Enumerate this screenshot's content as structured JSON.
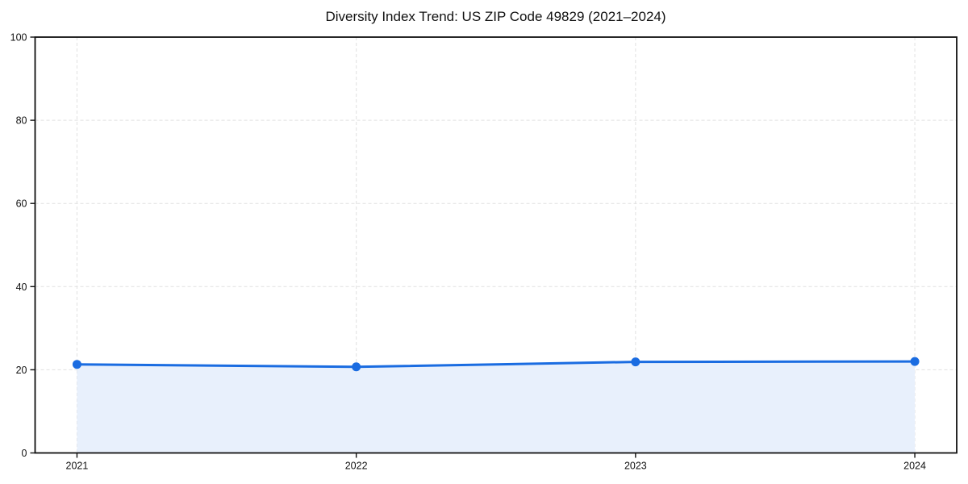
{
  "chart_data": {
    "type": "line",
    "title": "Diversity Index Trend: US ZIP Code 49829 (2021–2024)",
    "x": [
      2021,
      2022,
      2023,
      2024
    ],
    "categories": [
      "2021",
      "2022",
      "2023",
      "2024"
    ],
    "series": [
      {
        "name": "Diversity Index",
        "values": [
          21.3,
          20.7,
          21.9,
          22.0
        ]
      }
    ],
    "xlabel": "",
    "ylabel": "",
    "ylim": [
      0,
      100
    ],
    "yticks": [
      0,
      20,
      40,
      60,
      80,
      100
    ],
    "xticks": [
      2021,
      2022,
      2023,
      2024
    ],
    "grid": true,
    "grid_style": "dashed",
    "legend": false,
    "marker": "circle",
    "area_fill": true,
    "colors": {
      "line": "#1a6ce1",
      "marker": "#1a6ce1",
      "area_fill": "#e8f0fc",
      "grid": "#e0e0e0",
      "spine": "#0f0f0f",
      "tick_label": "#111111",
      "title": "#111111",
      "background": "#ffffff"
    }
  }
}
